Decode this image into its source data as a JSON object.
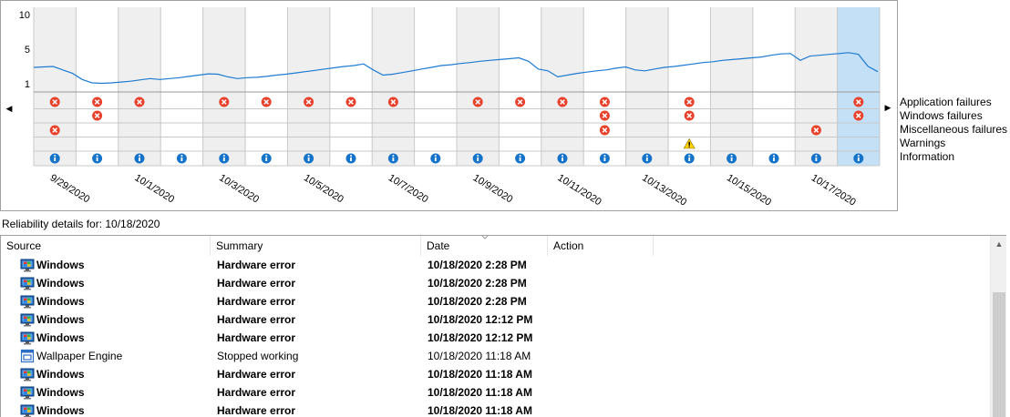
{
  "chart": {
    "y_ticks": [
      "10",
      "5",
      "1"
    ],
    "stability": [
      2.9,
      2.95,
      3.0,
      2.6,
      2.2,
      1.5,
      1.1,
      1.05,
      1.1,
      1.2,
      1.3,
      1.45,
      1.6,
      1.5,
      1.6,
      1.7,
      1.85,
      2.0,
      2.15,
      2.1,
      1.8,
      1.6,
      1.7,
      1.75,
      1.85,
      2.0,
      2.1,
      2.25,
      2.4,
      2.55,
      2.7,
      2.85,
      3.0,
      3.1,
      3.3,
      2.6,
      2.0,
      2.1,
      2.3,
      2.5,
      2.7,
      2.9,
      3.1,
      3.2,
      3.35,
      3.45,
      3.6,
      3.7,
      3.8,
      3.9,
      4.0,
      3.6,
      2.7,
      2.5,
      1.8,
      2.0,
      2.2,
      2.35,
      2.5,
      2.6,
      2.8,
      2.95,
      2.6,
      2.5,
      2.7,
      2.9,
      3.0,
      3.15,
      3.3,
      3.45,
      3.55,
      3.7,
      3.8,
      3.9,
      4.0,
      4.1,
      4.3,
      4.45,
      4.5,
      3.7,
      4.2,
      4.3,
      4.4,
      4.5,
      4.6,
      4.4,
      3.0,
      2.4
    ],
    "columns_shaded": [
      1,
      0,
      1,
      0,
      1,
      0,
      1,
      0,
      1,
      0,
      1,
      0,
      1,
      0,
      1,
      0,
      1,
      0,
      1,
      0
    ],
    "selected_column": 19,
    "app_failures": [
      1,
      1,
      1,
      0,
      1,
      1,
      1,
      1,
      1,
      0,
      1,
      1,
      1,
      1,
      0,
      1,
      0,
      0,
      0,
      1
    ],
    "windows_failures": [
      0,
      1,
      0,
      0,
      0,
      0,
      0,
      0,
      0,
      0,
      0,
      0,
      0,
      1,
      0,
      1,
      0,
      0,
      0,
      1
    ],
    "misc_failures": [
      1,
      0,
      0,
      0,
      0,
      0,
      0,
      0,
      0,
      0,
      0,
      0,
      0,
      1,
      0,
      0,
      0,
      0,
      1,
      0
    ],
    "warnings": [
      0,
      0,
      0,
      0,
      0,
      0,
      0,
      0,
      0,
      0,
      0,
      0,
      0,
      0,
      0,
      1,
      0,
      0,
      0,
      0
    ],
    "information": [
      1,
      1,
      1,
      1,
      1,
      1,
      1,
      1,
      1,
      1,
      1,
      1,
      1,
      1,
      1,
      1,
      1,
      1,
      1,
      1
    ],
    "date_labels": [
      "9/29/2020",
      "10/1/2020",
      "10/3/2020",
      "10/5/2020",
      "10/7/2020",
      "10/9/2020",
      "10/11/2020",
      "10/13/2020",
      "10/15/2020",
      "10/17/2020"
    ]
  },
  "legend": {
    "app": "Application failures",
    "windows": "Windows failures",
    "misc": "Miscellaneous failures",
    "warnings": "Warnings",
    "info": "Information"
  },
  "details_label": "Reliability details for: 10/18/2020",
  "table": {
    "headers": {
      "source": "Source",
      "summary": "Summary",
      "date": "Date",
      "action": "Action"
    },
    "rows": [
      {
        "source": "Windows",
        "summary": "Hardware error",
        "date": "10/18/2020 2:28 PM",
        "bold": true,
        "icon": "windows-monitor-icon"
      },
      {
        "source": "Windows",
        "summary": "Hardware error",
        "date": "10/18/2020 2:28 PM",
        "bold": true,
        "icon": "windows-monitor-icon"
      },
      {
        "source": "Windows",
        "summary": "Hardware error",
        "date": "10/18/2020 2:28 PM",
        "bold": true,
        "icon": "windows-monitor-icon"
      },
      {
        "source": "Windows",
        "summary": "Hardware error",
        "date": "10/18/2020 12:12 PM",
        "bold": true,
        "icon": "windows-monitor-icon"
      },
      {
        "source": "Windows",
        "summary": "Hardware error",
        "date": "10/18/2020 12:12 PM",
        "bold": true,
        "icon": "windows-monitor-icon"
      },
      {
        "source": "Wallpaper Engine",
        "summary": "Stopped working",
        "date": "10/18/2020 11:18 AM",
        "bold": false,
        "icon": "application-icon"
      },
      {
        "source": "Windows",
        "summary": "Hardware error",
        "date": "10/18/2020 11:18 AM",
        "bold": true,
        "icon": "windows-monitor-icon"
      },
      {
        "source": "Windows",
        "summary": "Hardware error",
        "date": "10/18/2020 11:18 AM",
        "bold": true,
        "icon": "windows-monitor-icon"
      },
      {
        "source": "Windows",
        "summary": "Hardware error",
        "date": "10/18/2020 11:18 AM",
        "bold": true,
        "icon": "windows-monitor-icon"
      }
    ]
  },
  "colors": {
    "shade": "#efefef",
    "selected": "#c4e0f6",
    "line": "#1e7bd2",
    "error": "#e8412b",
    "info": "#1574c9",
    "warning": "#ffd200",
    "grid": "#c8c8c8"
  }
}
